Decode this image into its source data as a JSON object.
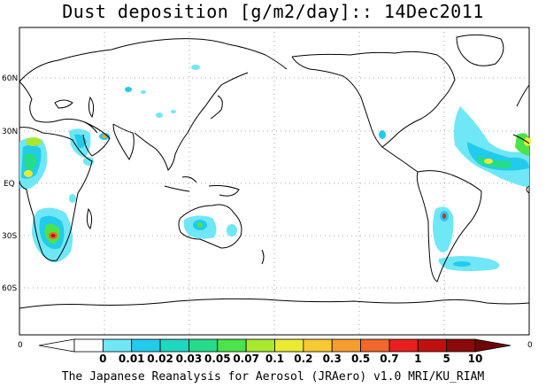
{
  "title": "Dust deposition [g/m2/day]:: 14Dec2011",
  "footer": "The Japanese Reanalysis for Aerosol (JRAero) v1.0 MRI/KU_RIAM",
  "lat_labels": [
    "60N",
    "30N",
    "EQ",
    "30S",
    "60S"
  ],
  "colorbar": {
    "levels": [
      "0",
      "0.01",
      "0.02",
      "0.03",
      "0.05",
      "0.07",
      "0.1",
      "0.2",
      "0.3",
      "0.5",
      "0.7",
      "1",
      "5",
      "10"
    ],
    "colors": [
      "#ffffff",
      "#ffffff",
      "#6fe7f6",
      "#22cbeb",
      "#20d7c0",
      "#25dc8a",
      "#4be34a",
      "#a8e82f",
      "#eaea33",
      "#f8c933",
      "#f79c2f",
      "#f2672a",
      "#e81f1f",
      "#bf1010",
      "#8c0a0a",
      "#6e0606"
    ],
    "left_label": "0",
    "right_label": "0"
  },
  "colors": {
    "coast": "#000000",
    "grid": "#888888"
  }
}
